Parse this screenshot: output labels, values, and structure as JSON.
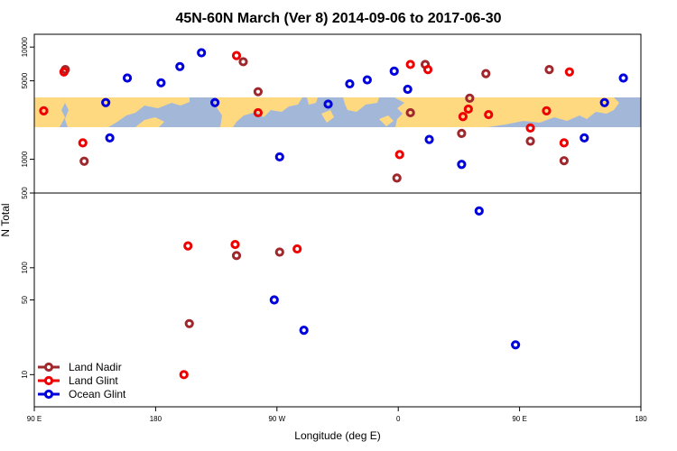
{
  "chart_data": {
    "type": "scatter",
    "title": "45N-60N March (Ver 8)   2014-09-06 to 2017-06-30",
    "xlabel": "Longitude (deg E)",
    "ylabel": "N Total",
    "y_scale": "log",
    "x_ticks": [
      {
        "value": 90,
        "label": "90 E"
      },
      {
        "value": 180,
        "label": "180"
      },
      {
        "value": 270,
        "label": "90 W"
      },
      {
        "value": 360,
        "label": "0"
      },
      {
        "value": 450,
        "label": "90 E"
      },
      {
        "value": 540,
        "label": "180"
      }
    ],
    "x_range": [
      90,
      540
    ],
    "y_ticks_lower": [
      {
        "value": 10,
        "label": "10"
      },
      {
        "value": 50,
        "label": "50"
      },
      {
        "value": 100,
        "label": "100"
      },
      {
        "value": 500,
        "label": "500"
      }
    ],
    "y_ticks_upper": [
      {
        "value": 1000,
        "label": "1000"
      },
      {
        "value": 5000,
        "label": "5000"
      },
      {
        "value": 10000,
        "label": "10000"
      }
    ],
    "colors": {
      "land_nadir": "#a0282d",
      "land_glint": "#ee0000",
      "ocean_glint": "#0000dd",
      "map_land": "#ffd980",
      "map_ocean": "#a3b8d9"
    },
    "legend": {
      "position": "bottom-left",
      "entries": [
        {
          "key": "land_nadir",
          "label": "Land Nadir"
        },
        {
          "key": "land_glint",
          "label": "Land Glint"
        },
        {
          "key": "ocean_glint",
          "label": "Ocean Glint"
        }
      ]
    },
    "series": [
      {
        "key": "land_nadir",
        "name": "Land Nadir",
        "points": [
          [
            113,
            6300
          ],
          [
            127,
            960
          ],
          [
            205,
            30
          ],
          [
            245,
            7400
          ],
          [
            256,
            4000
          ],
          [
            240,
            130
          ],
          [
            272,
            140
          ],
          [
            359,
            680
          ],
          [
            369,
            2600
          ],
          [
            380,
            7000
          ],
          [
            407,
            1700
          ],
          [
            413,
            3500
          ],
          [
            425,
            5800
          ],
          [
            458,
            1450
          ],
          [
            472,
            6300
          ],
          [
            483,
            970
          ]
        ]
      },
      {
        "key": "land_glint",
        "name": "Land Glint",
        "points": [
          [
            97,
            2700
          ],
          [
            112,
            6000
          ],
          [
            126,
            1400
          ],
          [
            201,
            10
          ],
          [
            204,
            160
          ],
          [
            240,
            8400
          ],
          [
            239,
            165
          ],
          [
            256,
            2600
          ],
          [
            285,
            150
          ],
          [
            361,
            1100
          ],
          [
            369,
            7000
          ],
          [
            382,
            6300
          ],
          [
            408,
            2400
          ],
          [
            412,
            2800
          ],
          [
            427,
            2500
          ],
          [
            458,
            1900
          ],
          [
            470,
            2700
          ],
          [
            487,
            6000
          ],
          [
            483,
            1400
          ]
        ]
      },
      {
        "key": "ocean_glint",
        "name": "Ocean Glint",
        "points": [
          [
            143,
            3200
          ],
          [
            146,
            1550
          ],
          [
            159,
            5300
          ],
          [
            184,
            4800
          ],
          [
            198,
            6700
          ],
          [
            214,
            8900
          ],
          [
            224,
            3200
          ],
          [
            268,
            50
          ],
          [
            272,
            1050
          ],
          [
            290,
            26
          ],
          [
            308,
            3100
          ],
          [
            324,
            4700
          ],
          [
            337,
            5100
          ],
          [
            357,
            6100
          ],
          [
            367,
            4200
          ],
          [
            383,
            1500
          ],
          [
            407,
            900
          ],
          [
            420,
            340
          ],
          [
            447,
            19
          ],
          [
            498,
            1550
          ],
          [
            513,
            3200
          ],
          [
            527,
            5300
          ]
        ]
      }
    ]
  }
}
